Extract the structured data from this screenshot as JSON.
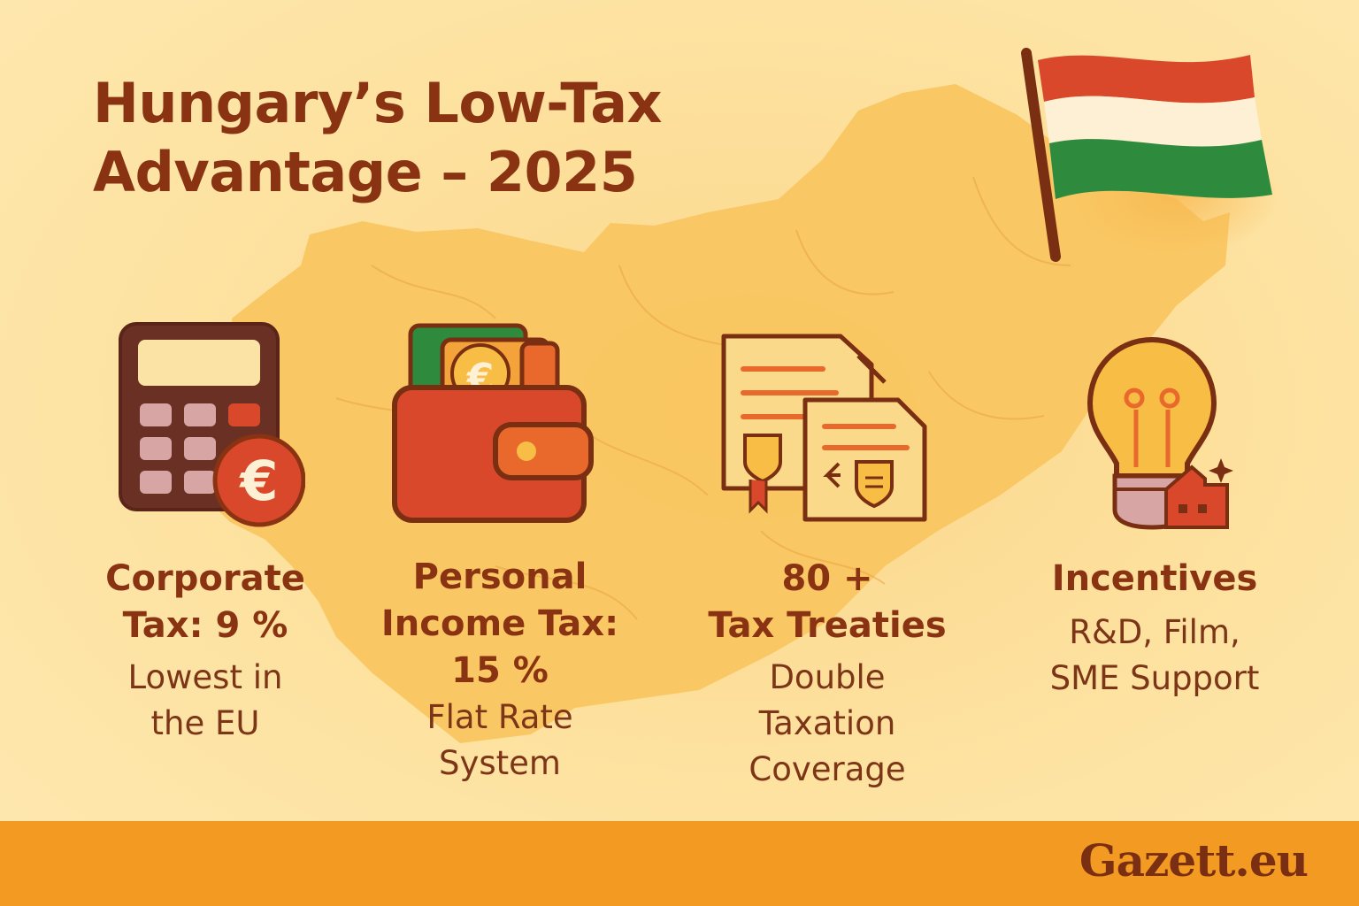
{
  "title": {
    "line1": "Hungary’s Low-Tax",
    "line2": "Advantage – 2025"
  },
  "colors": {
    "background": "#fde3a2",
    "map": "#f8c35b",
    "text": "#8a3312",
    "footer": "#f39a23",
    "flag_red": "#d9482b",
    "flag_white": "#fdf0d5",
    "flag_green": "#2e8a3c"
  },
  "columns": [
    {
      "icon": "calculator-euro-icon",
      "heading": [
        "Corporate",
        "Tax: 9 %"
      ],
      "subtext": [
        "Lowest in",
        "the EU"
      ]
    },
    {
      "icon": "wallet-icon",
      "heading": [
        "Personal",
        "Income Tax:",
        "15 %"
      ],
      "subtext": [
        "Flat Rate",
        "System"
      ]
    },
    {
      "icon": "documents-icon",
      "heading": [
        "80 +",
        "Tax Treaties"
      ],
      "subtext": [
        "Double",
        "Taxation",
        "Coverage"
      ]
    },
    {
      "icon": "lightbulb-icon",
      "heading": [
        "Incentives"
      ],
      "subtext": [
        "R&D, Film,",
        "SME Support"
      ]
    }
  ],
  "footer": {
    "brand": "Gazett.eu"
  }
}
